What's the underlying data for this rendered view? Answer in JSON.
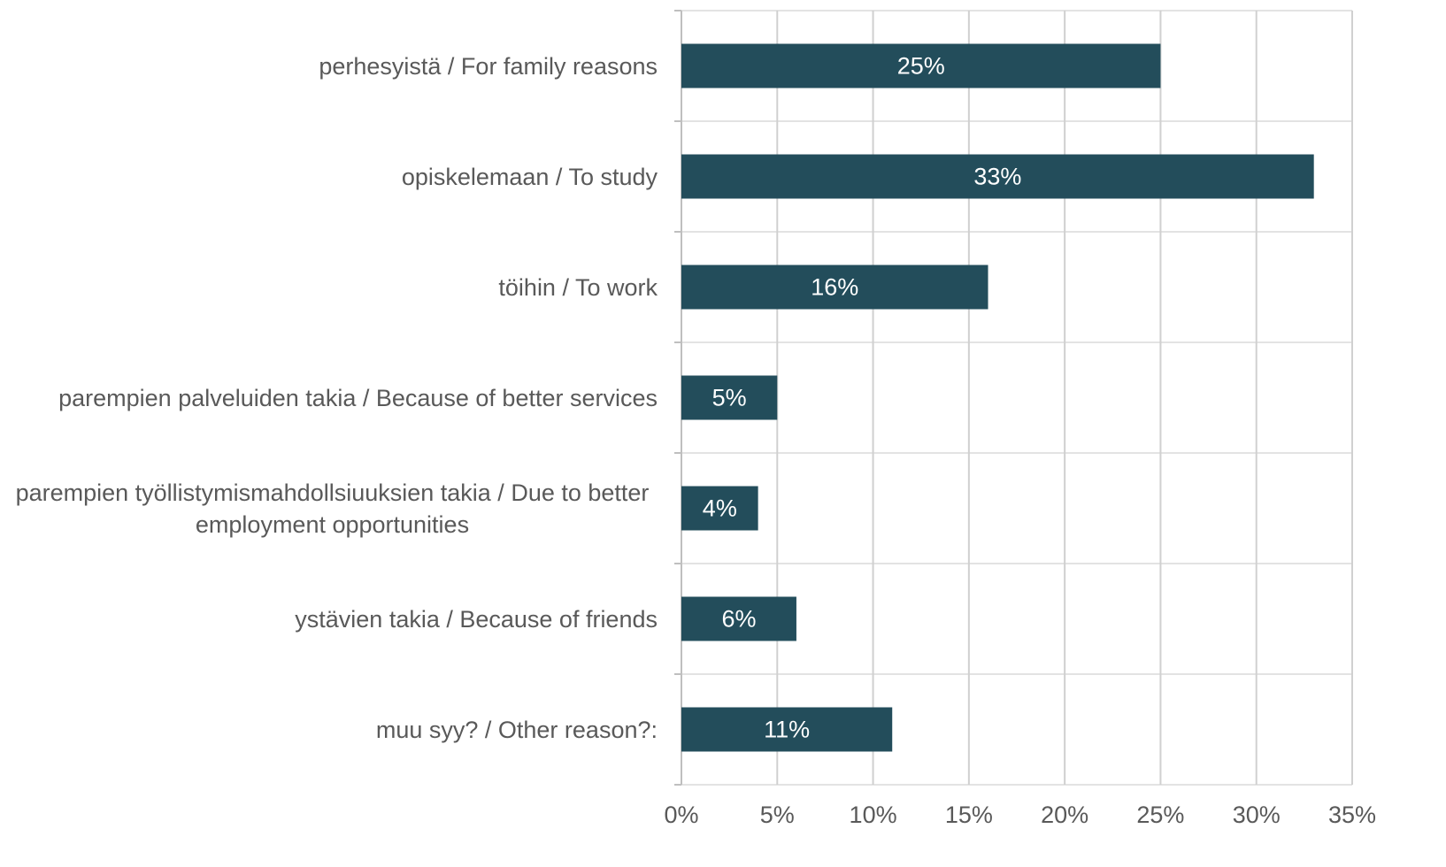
{
  "chart_data": {
    "type": "bar",
    "orientation": "horizontal",
    "categories": [
      "perhesyistä / For family reasons",
      "opiskelemaan / To study",
      "töihin / To work",
      "parempien palveluiden takia / Because of better services",
      "parempien työllistymismahdollsiuuksien takia / Due to better employment opportunities",
      "ystävien takia / Because of friends",
      "muu syy? / Other reason?:"
    ],
    "values": [
      25,
      33,
      16,
      5,
      4,
      6,
      11
    ],
    "value_labels": [
      "25%",
      "33%",
      "16%",
      "5%",
      "4%",
      "6%",
      "11%"
    ],
    "color": "#234d5b",
    "xlim": [
      0,
      35
    ],
    "xticks": [
      {
        "value": 0,
        "label": "0%"
      },
      {
        "value": 5,
        "label": "5%"
      },
      {
        "value": 10,
        "label": "10%"
      },
      {
        "value": 15,
        "label": "15%"
      },
      {
        "value": 20,
        "label": "20%"
      },
      {
        "value": 25,
        "label": "25%"
      },
      {
        "value": 30,
        "label": "30%"
      },
      {
        "value": 35,
        "label": "35%"
      }
    ],
    "grid": true
  }
}
